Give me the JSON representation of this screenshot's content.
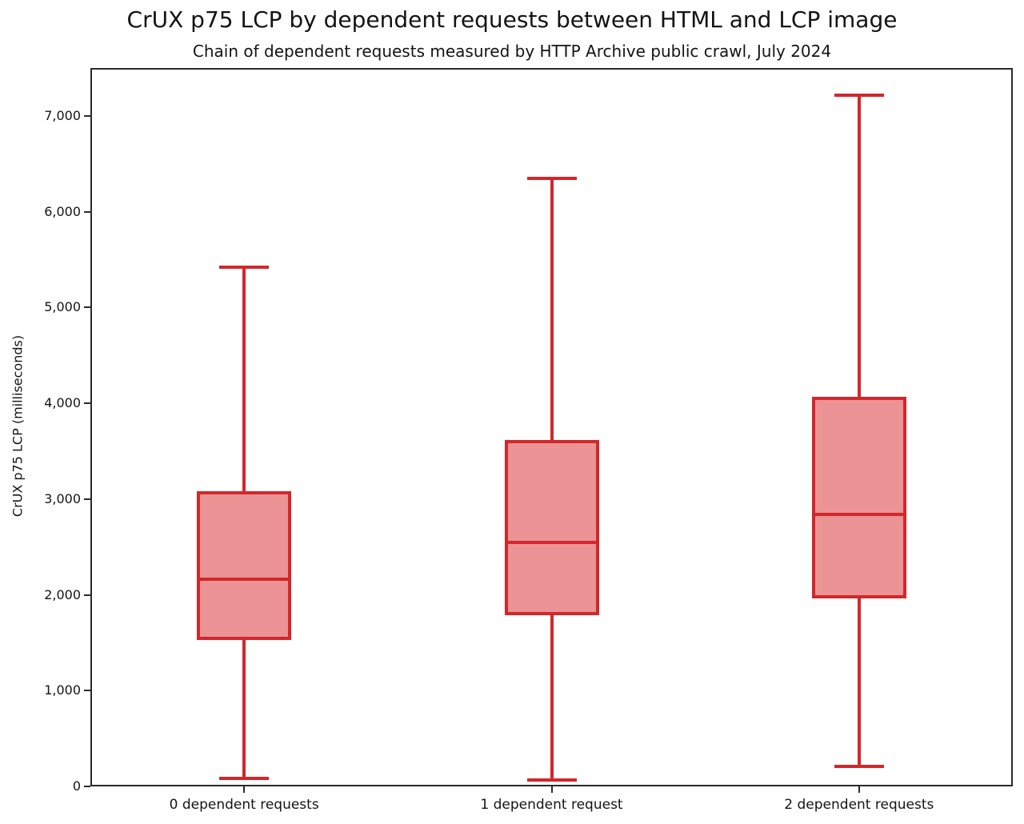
{
  "title": "CrUX p75 LCP by dependent requests between HTML and LCP image",
  "subtitle": "Chain of dependent requests measured by HTTP Archive public crawl, July 2024",
  "chart_data": {
    "type": "boxplot",
    "title": "CrUX p75 LCP by dependent requests between HTML and LCP image",
    "subtitle": "Chain of dependent requests measured by HTTP Archive public crawl, July 2024",
    "xlabel": "",
    "ylabel": "CrUX p75 LCP (milliseconds)",
    "ylim": [
      0,
      7500
    ],
    "yticks": [
      0,
      1000,
      2000,
      3000,
      4000,
      5000,
      6000,
      7000
    ],
    "ytick_labels": [
      "0",
      "1,000",
      "2,000",
      "3,000",
      "4,000",
      "5,000",
      "6,000",
      "7,000"
    ],
    "grid": false,
    "legend": "none",
    "categories": [
      "0 dependent requests",
      "1 dependent request",
      "2 dependent requests"
    ],
    "series": [
      {
        "name": "0 dependent requests",
        "whisker_low": 85,
        "q1": 1530,
        "median": 2160,
        "q3": 3080,
        "whisker_high": 5420
      },
      {
        "name": "1 dependent request",
        "whisker_low": 70,
        "q1": 1790,
        "median": 2550,
        "q3": 3620,
        "whisker_high": 6350
      },
      {
        "name": "2 dependent requests",
        "whisker_low": 210,
        "q1": 1960,
        "median": 2840,
        "q3": 4070,
        "whisker_high": 7220
      }
    ],
    "colors": {
      "box_edge": "#d2272b",
      "box_fill": "#eb9395",
      "spine": "#2a2a2a",
      "text": "#141414"
    }
  }
}
